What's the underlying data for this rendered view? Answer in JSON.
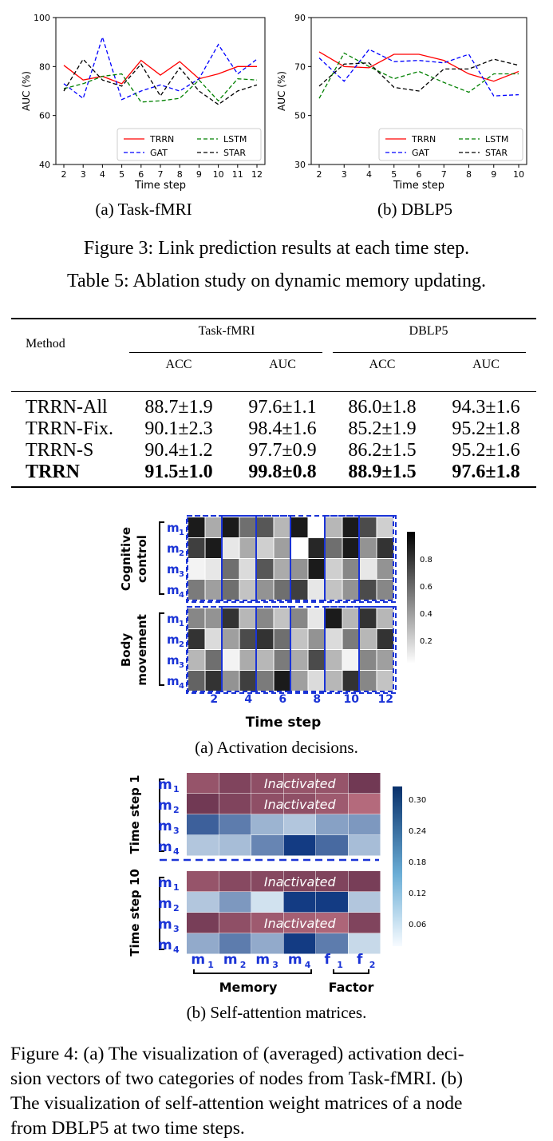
{
  "figure3": {
    "charts": [
      {
        "type": "line",
        "x": [
          2,
          3,
          4,
          5,
          6,
          7,
          8,
          9,
          10,
          11,
          12
        ],
        "xlabel": "Time step",
        "ylabel": "AUC (%)",
        "ylim": [
          40,
          100
        ],
        "yticks": [
          40,
          60,
          80,
          100
        ],
        "grid": false,
        "legend": "lower-right",
        "series": [
          {
            "name": "TRRN",
            "color": "#ff0000",
            "dash": "solid",
            "values": [
              80.5,
              74.5,
              76,
              73,
              82.5,
              76.5,
              82,
              75,
              77,
              80,
              80
            ]
          },
          {
            "name": "GAT",
            "color": "#0000ff",
            "dash": "dashed",
            "values": [
              73,
              67,
              92,
              66.5,
              70,
              72.5,
              70,
              75,
              89,
              77,
              83
            ]
          },
          {
            "name": "LSTM",
            "color": "#008000",
            "dash": "dashed",
            "values": [
              71,
              73,
              76,
              77,
              65.5,
              66,
              67,
              74.5,
              66,
              75,
              74.5
            ]
          },
          {
            "name": "STAR",
            "color": "#000000",
            "dash": "dashed",
            "values": [
              70,
              83,
              74.5,
              72,
              81,
              68,
              79.5,
              70,
              64.5,
              70,
              72.5
            ]
          }
        ]
      },
      {
        "type": "line",
        "x": [
          2,
          3,
          4,
          5,
          6,
          7,
          8,
          9,
          10
        ],
        "xlabel": "Time step",
        "ylabel": "AUC (%)",
        "ylim": [
          30,
          90
        ],
        "yticks": [
          30,
          50,
          70,
          90
        ],
        "grid": false,
        "legend": "lower-right",
        "series": [
          {
            "name": "TRRN",
            "color": "#ff0000",
            "dash": "solid",
            "values": [
              76,
              70,
              69.5,
              75,
              75,
              72.5,
              67,
              64,
              68
            ]
          },
          {
            "name": "GAT",
            "color": "#0000ff",
            "dash": "dashed",
            "values": [
              73.5,
              64,
              77,
              72,
              72.5,
              71.5,
              75,
              58,
              58.5
            ]
          },
          {
            "name": "LSTM",
            "color": "#008000",
            "dash": "dashed",
            "values": [
              57,
              75.5,
              70,
              65,
              68,
              63.5,
              59.5,
              67,
              67
            ]
          },
          {
            "name": "STAR",
            "color": "#000000",
            "dash": "dashed",
            "values": [
              62,
              71,
              71.5,
              61.5,
              60,
              69,
              69,
              73,
              70.5
            ]
          }
        ]
      }
    ],
    "sub_a": "(a)  Task-fMRI",
    "sub_b": "(b)  DBLP5",
    "caption": "Figure 3: Link prediction results at each time step."
  },
  "table5": {
    "caption": "Table 5: Ablation study on dynamic memory updating.",
    "method_header": "Method",
    "group1": "Task-fMRI",
    "group2": "DBLP5",
    "sub_headers": [
      "ACC",
      "AUC",
      "ACC",
      "AUC"
    ],
    "rows": [
      {
        "method": "TRRN-All",
        "c1": "88.7±1.9",
        "c2": "97.6±1.1",
        "c3": "86.0±1.8",
        "c4": "94.3±1.6",
        "bold": false
      },
      {
        "method": "TRRN-Fix.",
        "c1": "90.1±2.3",
        "c2": "98.4±1.6",
        "c3": "85.2±1.9",
        "c4": "95.2±1.8",
        "bold": false
      },
      {
        "method": "TRRN-S",
        "c1": "90.4±1.2",
        "c2": "97.7±0.9",
        "c3": "86.2±1.5",
        "c4": "95.2±1.6",
        "bold": false
      },
      {
        "method": "TRRN",
        "c1": "91.5±1.0",
        "c2": "99.8±0.8",
        "c3": "88.9±1.5",
        "c4": "97.6±1.8",
        "bold": true
      }
    ]
  },
  "figure4": {
    "heatmap_a": {
      "group1": [
        "Cognitive",
        "control"
      ],
      "group2": [
        "Body",
        "movement"
      ],
      "rows": [
        "m",
        "m",
        "m",
        "m"
      ],
      "row_subs": [
        "1",
        "2",
        "3",
        "4"
      ],
      "xticks": [
        "2",
        "4",
        "6",
        "8",
        "10",
        "12"
      ],
      "xlabel": "Time step",
      "colorbar": [
        "0.8",
        "0.6",
        "0.4",
        "0.2"
      ],
      "top": [
        [
          0.95,
          0.35,
          0.95,
          0.6,
          0.7,
          0.3,
          0.95,
          0.0,
          0.3,
          0.95,
          0.75,
          0.2
        ],
        [
          0.8,
          0.95,
          0.1,
          0.35,
          0.2,
          0.4,
          0.0,
          0.9,
          0.6,
          0.95,
          0.45,
          0.85
        ],
        [
          0.05,
          0.1,
          0.6,
          0.15,
          0.7,
          0.35,
          0.45,
          0.95,
          0.2,
          0.5,
          0.1,
          0.45
        ],
        [
          0.55,
          0.4,
          0.6,
          0.25,
          0.45,
          0.6,
          0.8,
          0.1,
          0.25,
          0.45,
          0.75,
          0.5
        ]
      ],
      "bottom": [
        [
          0.5,
          0.45,
          0.85,
          0.3,
          0.5,
          0.25,
          0.5,
          0.1,
          0.95,
          0.3,
          0.85,
          0.3
        ],
        [
          0.85,
          0.15,
          0.4,
          0.75,
          0.85,
          0.6,
          0.25,
          0.45,
          0.15,
          0.55,
          0.3,
          0.85
        ],
        [
          0.3,
          0.6,
          0.05,
          0.35,
          0.3,
          0.55,
          0.35,
          0.75,
          0.3,
          0.05,
          0.5,
          0.4
        ],
        [
          0.65,
          0.85,
          0.45,
          0.8,
          0.55,
          0.95,
          0.4,
          0.15,
          0.3,
          0.85,
          0.5,
          0.25
        ]
      ]
    },
    "heatmap_b": {
      "label_top": "Time step 1",
      "label_bottom": "Time step 10",
      "rows": [
        "m",
        "m",
        "m",
        "m"
      ],
      "row_subs": [
        "1",
        "2",
        "3",
        "4"
      ],
      "cols": [
        "m",
        "m",
        "m",
        "m",
        "f",
        "f"
      ],
      "col_subs": [
        "1",
        "2",
        "3",
        "4",
        "1",
        "2"
      ],
      "inactivated_label": "Inactivated",
      "group_memory": "Memory",
      "group_factor": "Factor",
      "colorbar": [
        "0.30",
        "0.24",
        "0.18",
        "0.12",
        "0.06"
      ],
      "top": [
        [
          -0.6,
          -0.75,
          -0.65,
          -0.6,
          -0.6,
          -0.85
        ],
        [
          -0.85,
          -0.75,
          -0.65,
          -0.65,
          -0.55,
          -0.4
        ],
        [
          0.75,
          0.6,
          0.3,
          0.2,
          0.4,
          0.45
        ],
        [
          0.2,
          0.25,
          0.55,
          0.95,
          0.7,
          0.25
        ]
      ],
      "bottom": [
        [
          -0.6,
          -0.7,
          -0.7,
          -0.75,
          -0.75,
          -0.8
        ],
        [
          0.2,
          0.45,
          0.05,
          0.95,
          0.95,
          0.2
        ],
        [
          -0.8,
          -0.65,
          -0.55,
          -0.5,
          -0.45,
          -0.75
        ],
        [
          0.35,
          0.6,
          0.35,
          0.95,
          0.6,
          0.1
        ]
      ]
    },
    "sub_a": "(a)  Activation decisions.",
    "sub_b": "(b)  Self-attention matrices.",
    "caption_lines": [
      "Figure 4: (a) The visualization of (averaged) activation deci-",
      "sion vectors of two categories of nodes from Task-fMRI. (b)",
      "The visualization of self-attention weight matrices of a node",
      "from DBLP5 at two time steps."
    ]
  }
}
